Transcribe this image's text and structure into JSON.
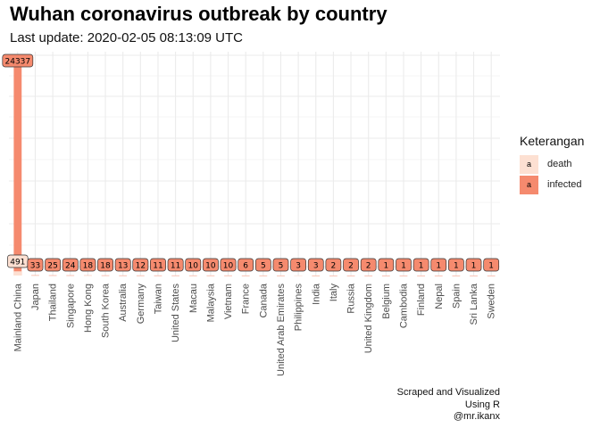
{
  "chart_data": {
    "type": "bar",
    "title": "Wuhan coronavirus outbreak by country",
    "subtitle": "Last update: 2020-02-05 08:13:09 UTC",
    "categories": [
      "Mainland China",
      "Japan",
      "Thailand",
      "Singapore",
      "Hong Kong",
      "South Korea",
      "Australia",
      "Germany",
      "Taiwan",
      "United States",
      "Macau",
      "Malaysia",
      "Vietnam",
      "France",
      "Canada",
      "United Arab Emirates",
      "Philippines",
      "India",
      "Italy",
      "Russia",
      "United Kingdom",
      "Belgium",
      "Cambodia",
      "Finland",
      "Nepal",
      "Spain",
      "Sri Lanka",
      "Sweden"
    ],
    "series": [
      {
        "name": "death",
        "color": "#fde0d2",
        "values": [
          491,
          0,
          0,
          0,
          1,
          0,
          0,
          0,
          0,
          0,
          0,
          0,
          0,
          0,
          0,
          0,
          1,
          0,
          0,
          0,
          0,
          0,
          0,
          0,
          0,
          0,
          0,
          0
        ]
      },
      {
        "name": "infected",
        "color": "#f58a6e",
        "values": [
          24337,
          33,
          25,
          24,
          18,
          18,
          13,
          12,
          11,
          11,
          10,
          10,
          10,
          6,
          5,
          5,
          3,
          3,
          2,
          2,
          2,
          1,
          1,
          1,
          1,
          1,
          1,
          1
        ]
      }
    ],
    "data_labels": [
      {
        "category": "Mainland China",
        "series": "infected",
        "text": "24337"
      },
      {
        "category": "Mainland China",
        "series": "death",
        "text": "491"
      },
      {
        "category": "Japan",
        "series": "infected",
        "text": "33"
      },
      {
        "category": "Thailand",
        "series": "infected",
        "text": "25"
      },
      {
        "category": "Singapore",
        "series": "infected",
        "text": "24"
      },
      {
        "category": "Hong Kong",
        "series": "infected",
        "text": "18"
      },
      {
        "category": "South Korea",
        "series": "infected",
        "text": "18"
      },
      {
        "category": "Australia",
        "series": "infected",
        "text": "13"
      },
      {
        "category": "Germany",
        "series": "infected",
        "text": "12"
      },
      {
        "category": "Taiwan",
        "series": "infected",
        "text": "11"
      },
      {
        "category": "United States",
        "series": "infected",
        "text": "11"
      },
      {
        "category": "Macau",
        "series": "infected",
        "text": "10"
      },
      {
        "category": "Malaysia",
        "series": "infected",
        "text": "10"
      },
      {
        "category": "Vietnam",
        "series": "infected",
        "text": "10"
      },
      {
        "category": "France",
        "series": "infected",
        "text": "6"
      },
      {
        "category": "Canada",
        "series": "infected",
        "text": "5"
      },
      {
        "category": "United Arab Emirates",
        "series": "infected",
        "text": "5"
      },
      {
        "category": "Philippines",
        "series": "infected",
        "text": "3"
      },
      {
        "category": "India",
        "series": "infected",
        "text": "3"
      },
      {
        "category": "Italy",
        "series": "infected",
        "text": "2"
      },
      {
        "category": "Russia",
        "series": "infected",
        "text": "2"
      },
      {
        "category": "United Kingdom",
        "series": "infected",
        "text": "2"
      },
      {
        "category": "Belgium",
        "series": "infected",
        "text": "1"
      },
      {
        "category": "Cambodia",
        "series": "infected",
        "text": "1"
      },
      {
        "category": "Finland",
        "series": "infected",
        "text": "1"
      },
      {
        "category": "Nepal",
        "series": "infected",
        "text": "1"
      },
      {
        "category": "Spain",
        "series": "infected",
        "text": "1"
      },
      {
        "category": "Sri Lanka",
        "series": "infected",
        "text": "1"
      },
      {
        "category": "Sweden",
        "series": "infected",
        "text": "1"
      }
    ],
    "xlabel": "",
    "ylabel": "",
    "ylim": [
      0,
      25000
    ],
    "grid": true,
    "legend_position": "right"
  },
  "legend": {
    "title": "Keterangan",
    "key_glyph": "a",
    "items": [
      {
        "label": "death",
        "color": "#fde0d2"
      },
      {
        "label": "infected",
        "color": "#f58a6e"
      }
    ]
  },
  "caption": {
    "lines": [
      "Scraped and Visualized",
      "Using R",
      "@mr.ikanx"
    ]
  }
}
